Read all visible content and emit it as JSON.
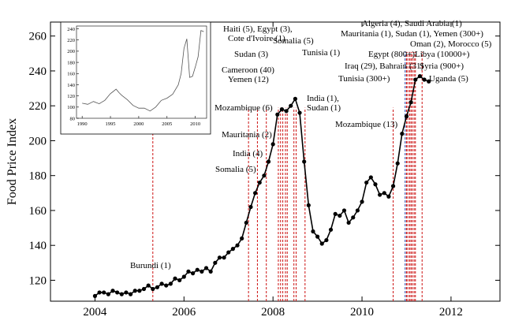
{
  "chart_data": {
    "type": "line",
    "title": "",
    "xlabel": "",
    "ylabel": "Food Price Index",
    "xlim": [
      2003.0,
      2013.1
    ],
    "ylim": [
      108,
      268
    ],
    "x_ticks": [
      2004,
      2006,
      2008,
      2010,
      2012
    ],
    "y_ticks": [
      120,
      140,
      160,
      180,
      200,
      220,
      240,
      260
    ],
    "series": [
      {
        "name": "",
        "x": [
          2004.0,
          2004.1,
          2004.2,
          2004.3,
          2004.4,
          2004.5,
          2004.6,
          2004.7,
          2004.8,
          2004.9,
          2005.0,
          2005.1,
          2005.2,
          2005.3,
          2005.4,
          2005.5,
          2005.6,
          2005.7,
          2005.8,
          2005.9,
          2006.0,
          2006.1,
          2006.2,
          2006.3,
          2006.4,
          2006.5,
          2006.6,
          2006.7,
          2006.8,
          2006.9,
          2007.0,
          2007.1,
          2007.2,
          2007.3,
          2007.4,
          2007.5,
          2007.6,
          2007.7,
          2007.8,
          2007.9,
          2008.0,
          2008.1,
          2008.2,
          2008.3,
          2008.4,
          2008.5,
          2008.6,
          2008.7,
          2008.8,
          2008.9,
          2009.0,
          2009.1,
          2009.2,
          2009.3,
          2009.4,
          2009.5,
          2009.6,
          2009.7,
          2009.8,
          2009.9,
          2010.0,
          2010.1,
          2010.2,
          2010.3,
          2010.4,
          2010.5,
          2010.6,
          2010.7,
          2010.8,
          2010.9,
          2011.0,
          2011.1,
          2011.2,
          2011.3,
          2011.4,
          2011.5
        ],
        "y": [
          111,
          113,
          113,
          112,
          114,
          113,
          112,
          113,
          112,
          114,
          114,
          115,
          117,
          115,
          116,
          118,
          117,
          118,
          121,
          120,
          122,
          125,
          124,
          126,
          125,
          127,
          125,
          130,
          133,
          133,
          136,
          138,
          140,
          144,
          153,
          162,
          170,
          176,
          180,
          188,
          198,
          215,
          218,
          217,
          220,
          224,
          216,
          188,
          163,
          148,
          145,
          141,
          143,
          149,
          158,
          157,
          160,
          153,
          156,
          160,
          165,
          176,
          179,
          175,
          169,
          170,
          168,
          174,
          187,
          204,
          214,
          222,
          235,
          237,
          235,
          234
        ]
      }
    ],
    "protest_markers": [
      {
        "x": 2005.3,
        "label": "Burundi (1)"
      },
      {
        "x": 2007.45,
        "label": "Somalia (5)"
      },
      {
        "x": 2007.65,
        "label": "India (4)"
      },
      {
        "x": 2007.85,
        "label": "Mauritania (2)"
      },
      {
        "x": 2008.12,
        "label": "Mozambique (6)"
      },
      {
        "x": 2008.17,
        "label": "Yemen (12)"
      },
      {
        "x": 2008.22,
        "label": "Cameroon (40)"
      },
      {
        "x": 2008.28,
        "label": "Sudan (3)"
      },
      {
        "x": 2008.32,
        "label": "Haiti (5), Egypt (3), Cote d'Ivoire (1)"
      },
      {
        "x": 2008.47,
        "label": "Somalia (5)"
      },
      {
        "x": 2008.52,
        "label": "Tunisia (1)"
      },
      {
        "x": 2008.72,
        "label": "India (1), Sudan (1)"
      },
      {
        "x": 2010.7,
        "label": "Mozambique (13)"
      },
      {
        "x": 2010.97,
        "label": "Tunisia (300+)"
      },
      {
        "x": 2011.0,
        "label": "Algeria (4), Saudi Arabia (1)"
      },
      {
        "x": 2011.03,
        "label": "Mauritania (1), Sudan (1), Yemen (300+)"
      },
      {
        "x": 2011.07,
        "label": "Oman (2), Morocco (5)"
      },
      {
        "x": 2011.1,
        "label": "Egypt (800+)"
      },
      {
        "x": 2011.13,
        "label": "Iraq (29), Bahrain (31)"
      },
      {
        "x": 2011.17,
        "label": "Libya (10000+)"
      },
      {
        "x": 2011.2,
        "label": "Syria (900+)"
      },
      {
        "x": 2011.35,
        "label": "Uganda (5)"
      }
    ],
    "inset": {
      "xlim": [
        1989,
        2012
      ],
      "ylim": [
        80,
        245
      ],
      "x_ticks": [
        1990,
        1995,
        2000,
        2005,
        2010
      ],
      "y_ticks": [
        80,
        100,
        120,
        140,
        160,
        180,
        200,
        220,
        240
      ],
      "x": [
        1990,
        1991,
        1992,
        1993,
        1994,
        1995,
        1995.5,
        1996,
        1996.5,
        1997,
        1998,
        1999,
        2000,
        2001,
        2002,
        2003,
        2004,
        2005,
        2006,
        2007,
        2007.5,
        2008,
        2008.5,
        2009,
        2009.5,
        2010,
        2010.5,
        2011,
        2011.5
      ],
      "y": [
        107,
        105,
        110,
        106,
        112,
        124,
        128,
        132,
        126,
        121,
        113,
        103,
        98,
        98,
        93,
        100,
        112,
        116,
        123,
        140,
        160,
        205,
        222,
        153,
        155,
        172,
        190,
        237,
        235
      ]
    }
  },
  "colors": {
    "line": "#000000",
    "marker_line": "#cc1111",
    "tunisia_line": "#1f3fa8"
  }
}
